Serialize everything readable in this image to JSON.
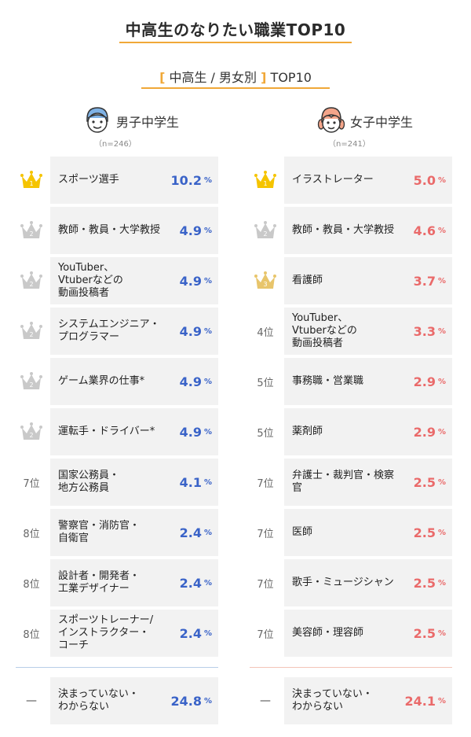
{
  "header": {
    "title": "中高生のなりたい職業TOP10",
    "subtitle_open": "[",
    "subtitle_middle": "中高生 / 男女別",
    "subtitle_close": "]",
    "subtitle_tail": "TOP10"
  },
  "colors": {
    "accent": "#f0a838",
    "boys_value": "#3a63c8",
    "girls_value": "#ea6a6a",
    "gold_crown": "#f5c400",
    "silver_crown": "#c9c9c9",
    "bronze_crown": "#e8c56b",
    "card_bg": "#f2f2f2"
  },
  "chart_data": [
    {
      "type": "table",
      "name": "男子中学生",
      "n_label": "（n=246）",
      "unit": "%",
      "rows": [
        {
          "rank_label": "1",
          "rank_icon": "gold-crown",
          "label": "スポーツ選手",
          "value": 10.2
        },
        {
          "rank_label": "2",
          "rank_icon": "silver-crown",
          "label": "教師・教員・大学教授",
          "value": 4.9
        },
        {
          "rank_label": "2",
          "rank_icon": "silver-crown",
          "label": "YouTuber、\nVtuberなどの\n動画投稿者",
          "value": 4.9
        },
        {
          "rank_label": "2",
          "rank_icon": "silver-crown",
          "label": "システムエンジニア・\nプログラマー",
          "value": 4.9
        },
        {
          "rank_label": "2",
          "rank_icon": "silver-crown",
          "label": "ゲーム業界の仕事*",
          "value": 4.9
        },
        {
          "rank_label": "2",
          "rank_icon": "silver-crown",
          "label": "運転手・ドライバー*",
          "value": 4.9
        },
        {
          "rank_label": "7位",
          "rank_icon": "",
          "label": "国家公務員・\n地方公務員",
          "value": 4.1
        },
        {
          "rank_label": "8位",
          "rank_icon": "",
          "label": "警察官・消防官・\n自衛官",
          "value": 2.4
        },
        {
          "rank_label": "8位",
          "rank_icon": "",
          "label": "設計者・開発者・\n工業デザイナー",
          "value": 2.4
        },
        {
          "rank_label": "8位",
          "rank_icon": "",
          "label": "スポーツトレーナー/\nインストラクター・\nコーチ",
          "value": 2.4
        }
      ],
      "other": {
        "rank_label": "—",
        "label": "決まっていない・\nわからない",
        "value": 24.8
      }
    },
    {
      "type": "table",
      "name": "女子中学生",
      "n_label": "（n=241）",
      "unit": "%",
      "rows": [
        {
          "rank_label": "1",
          "rank_icon": "gold-crown",
          "label": "イラストレーター",
          "value": 5.0
        },
        {
          "rank_label": "2",
          "rank_icon": "silver-crown",
          "label": "教師・教員・大学教授",
          "value": 4.6
        },
        {
          "rank_label": "3",
          "rank_icon": "bronze-crown",
          "label": "看護師",
          "value": 3.7
        },
        {
          "rank_label": "4位",
          "rank_icon": "",
          "label": "YouTuber、\nVtuberなどの\n動画投稿者",
          "value": 3.3
        },
        {
          "rank_label": "5位",
          "rank_icon": "",
          "label": "事務職・営業職",
          "value": 2.9
        },
        {
          "rank_label": "5位",
          "rank_icon": "",
          "label": "薬剤師",
          "value": 2.9
        },
        {
          "rank_label": "7位",
          "rank_icon": "",
          "label": "弁護士・裁判官・検察官",
          "value": 2.5
        },
        {
          "rank_label": "7位",
          "rank_icon": "",
          "label": "医師",
          "value": 2.5
        },
        {
          "rank_label": "7位",
          "rank_icon": "",
          "label": "歌手・ミュージシャン",
          "value": 2.5
        },
        {
          "rank_label": "7位",
          "rank_icon": "",
          "label": "美容師・理容師",
          "value": 2.5
        }
      ],
      "other": {
        "rank_label": "—",
        "label": "決まっていない・\nわからない",
        "value": 24.1
      }
    }
  ]
}
